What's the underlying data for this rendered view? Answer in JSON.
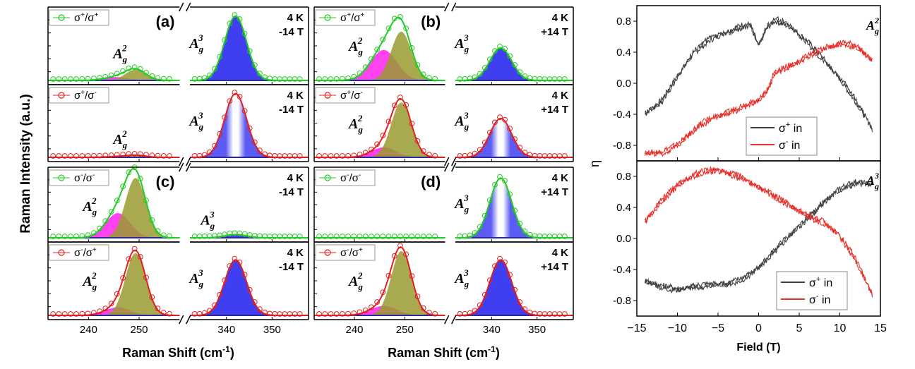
{
  "raman_panel": {
    "ylabel": "Raman Intensity (a.u.)",
    "xlabel": "Raman Shift (cm⁻¹)",
    "xlabel_html": "Raman Shift (cm",
    "xlabel_sup": "-1",
    "xlabel_close": ")",
    "ticks_low": [
      "240",
      "250"
    ],
    "ticks_high": [
      "340",
      "350"
    ]
  },
  "eta_panel": {
    "ylabel": "η",
    "xlabel": "Field (T)",
    "xticks": [
      "−15",
      "−10",
      "−5",
      "0",
      "5",
      "10",
      "15"
    ],
    "yticks": [
      "0.8",
      "0.4",
      "0.0",
      "-0.4",
      "-0.8"
    ]
  },
  "colors": {
    "green": "#22cc22",
    "red": "#e02020",
    "blue": "#2a2af0",
    "olive": "#9a9a30",
    "magenta": "#ff22ee",
    "dark": "#404040",
    "eta_red": "#e8302a"
  },
  "chart_data": [
    {
      "type": "line",
      "id": "a_top",
      "panel": "(a)",
      "label_lines": [
        "4 K",
        "-14 T"
      ],
      "legend": "σ⁺/σ⁺",
      "legend_base": "σ",
      "legend_sup1": "+",
      "legend_mid": "/σ",
      "legend_sup2": "+",
      "line_color": "green",
      "peaks": [
        {
          "name": "A_g^2",
          "center": 249.3,
          "width": 2.0,
          "amp": 0.16
        },
        {
          "name": "A_g^3",
          "center": 342.0,
          "width": 2.4,
          "amp": 0.95
        }
      ],
      "shoulder": {
        "center": 245.5,
        "width": 2.4,
        "amp": 0.05
      },
      "xlim_low": [
        232,
        258
      ],
      "xlim_high": [
        332,
        358
      ]
    },
    {
      "type": "line",
      "id": "a_bot",
      "panel": "",
      "label_lines": [
        "4 K",
        "-14 T"
      ],
      "legend": "σ⁺/σ⁻",
      "legend_base": "σ",
      "legend_sup1": "+",
      "legend_mid": "/σ",
      "legend_sup2": "-",
      "line_color": "red",
      "peaks": [
        {
          "name": "A_g^2",
          "center": 249.3,
          "width": 2.0,
          "amp": 0.03
        },
        {
          "name": "A_g^3",
          "center": 342.0,
          "width": 2.4,
          "amp": 0.95
        }
      ],
      "shoulder": {
        "center": 245.5,
        "width": 2.4,
        "amp": 0.01
      },
      "xlim_low": [
        232,
        258
      ],
      "xlim_high": [
        332,
        358
      ]
    },
    {
      "type": "line",
      "id": "b_top",
      "panel": "(b)",
      "label_lines": [
        "4 K",
        "+14 T"
      ],
      "legend": "σ⁺/σ⁺",
      "legend_base": "σ",
      "legend_sup1": "+",
      "legend_mid": "/σ",
      "legend_sup2": "+",
      "line_color": "green",
      "peaks": [
        {
          "name": "A_g^2",
          "center": 249.3,
          "width": 2.0,
          "amp": 0.72
        },
        {
          "name": "A_g^3",
          "center": 342.0,
          "width": 2.4,
          "amp": 0.48
        }
      ],
      "shoulder": {
        "center": 245.8,
        "width": 2.6,
        "amp": 0.45
      },
      "xlim_low": [
        232,
        258
      ],
      "xlim_high": [
        332,
        358
      ]
    },
    {
      "type": "line",
      "id": "b_bot",
      "panel": "",
      "label_lines": [
        "4 K",
        "+14 T"
      ],
      "legend": "σ⁺/σ⁻",
      "legend_base": "σ",
      "legend_sup1": "+",
      "legend_mid": "/σ",
      "legend_sup2": "-",
      "line_color": "red",
      "peaks": [
        {
          "name": "A_g^2",
          "center": 249.3,
          "width": 2.0,
          "amp": 0.82
        },
        {
          "name": "A_g^3",
          "center": 342.0,
          "width": 2.4,
          "amp": 0.58
        }
      ],
      "shoulder": {
        "center": 245.8,
        "width": 2.4,
        "amp": 0.15
      },
      "xlim_low": [
        232,
        258
      ],
      "xlim_high": [
        332,
        358
      ]
    },
    {
      "type": "line",
      "id": "c_top",
      "panel": "(c)",
      "label_lines": [
        "4 K",
        "-14 T"
      ],
      "legend": "σ⁻/σ⁻",
      "legend_base": "σ",
      "legend_sup1": "-",
      "legend_mid": "/σ",
      "legend_sup2": "-",
      "line_color": "green",
      "peaks": [
        {
          "name": "A_g^2",
          "center": 249.3,
          "width": 2.0,
          "amp": 0.92
        },
        {
          "name": "A_g^3",
          "center": 342.0,
          "width": 2.4,
          "amp": 0.05
        }
      ],
      "shoulder": {
        "center": 245.8,
        "width": 2.4,
        "amp": 0.38
      },
      "xlim_low": [
        232,
        258
      ],
      "xlim_high": [
        332,
        358
      ]
    },
    {
      "type": "line",
      "id": "c_bot",
      "panel": "",
      "label_lines": [
        "4 K",
        "-14 T"
      ],
      "legend": "σ⁻/σ⁺",
      "legend_base": "σ",
      "legend_sup1": "-",
      "legend_mid": "/σ",
      "legend_sup2": "+",
      "line_color": "red",
      "peaks": [
        {
          "name": "A_g^2",
          "center": 249.3,
          "width": 2.0,
          "amp": 0.92
        },
        {
          "name": "A_g^3",
          "center": 342.0,
          "width": 2.4,
          "amp": 0.82
        }
      ],
      "shoulder": {
        "center": 245.8,
        "width": 2.4,
        "amp": 0.12
      },
      "xlim_low": [
        232,
        258
      ],
      "xlim_high": [
        332,
        358
      ]
    },
    {
      "type": "line",
      "id": "d_top",
      "panel": "(d)",
      "label_lines": [
        "4 K",
        "+14 T"
      ],
      "legend": "σ⁻/σ⁻",
      "legend_base": "σ",
      "legend_sup1": "-",
      "legend_mid": "/σ",
      "legend_sup2": "-",
      "line_color": "green",
      "peaks": [
        {
          "name": "A_g^2",
          "center": 249.3,
          "width": 2.0,
          "amp": 0.0
        },
        {
          "name": "A_g^3",
          "center": 342.0,
          "width": 2.4,
          "amp": 0.92
        }
      ],
      "shoulder": {
        "center": 245.8,
        "width": 2.4,
        "amp": 0.0
      },
      "xlim_low": [
        232,
        258
      ],
      "xlim_high": [
        332,
        358
      ]
    },
    {
      "type": "line",
      "id": "d_bot",
      "panel": "",
      "label_lines": [
        "4 K",
        "+14 T"
      ],
      "legend": "σ⁻/σ⁺",
      "legend_base": "σ",
      "legend_sup1": "-",
      "legend_mid": "/σ",
      "legend_sup2": "+",
      "line_color": "red",
      "peaks": [
        {
          "name": "A_g^2",
          "center": 249.3,
          "width": 2.0,
          "amp": 0.95
        },
        {
          "name": "A_g^3",
          "center": 342.0,
          "width": 2.4,
          "amp": 0.82
        }
      ],
      "shoulder": {
        "center": 245.8,
        "width": 2.6,
        "amp": 0.14
      },
      "xlim_low": [
        232,
        258
      ],
      "xlim_high": [
        332,
        358
      ]
    },
    {
      "type": "line",
      "id": "eta_top",
      "mode": "A_g^2",
      "xlim": [
        -15,
        15
      ],
      "ylim": [
        -1.0,
        1.0
      ],
      "series": [
        {
          "name": "σ⁺ in",
          "name_base": "σ",
          "name_sup": "+",
          "name_rest": " in",
          "color": "dark",
          "points": [
            [
              -14,
              -0.4
            ],
            [
              -12,
              -0.22
            ],
            [
              -10,
              0.1
            ],
            [
              -8,
              0.38
            ],
            [
              -6,
              0.55
            ],
            [
              -4,
              0.66
            ],
            [
              -2,
              0.76
            ],
            [
              -1,
              0.76
            ],
            [
              0,
              0.48
            ],
            [
              1,
              0.7
            ],
            [
              2,
              0.8
            ],
            [
              4,
              0.72
            ],
            [
              6,
              0.55
            ],
            [
              8,
              0.32
            ],
            [
              10,
              0.05
            ],
            [
              12,
              -0.25
            ],
            [
              14,
              -0.58
            ]
          ]
        },
        {
          "name": "σ⁻ in",
          "name_base": "σ",
          "name_sup": "-",
          "name_rest": " in",
          "color": "eta_red",
          "points": [
            [
              -14,
              -0.9
            ],
            [
              -12,
              -0.88
            ],
            [
              -10,
              -0.78
            ],
            [
              -8,
              -0.62
            ],
            [
              -6,
              -0.48
            ],
            [
              -4,
              -0.38
            ],
            [
              -2,
              -0.28
            ],
            [
              0,
              -0.22
            ],
            [
              1,
              -0.12
            ],
            [
              2,
              0.12
            ],
            [
              4,
              0.22
            ],
            [
              6,
              0.36
            ],
            [
              8,
              0.46
            ],
            [
              10,
              0.5
            ],
            [
              12,
              0.46
            ],
            [
              14,
              0.3
            ]
          ]
        }
      ]
    },
    {
      "type": "line",
      "id": "eta_bot",
      "mode": "A_g^3",
      "xlim": [
        -15,
        15
      ],
      "ylim": [
        -1.0,
        1.0
      ],
      "series": [
        {
          "name": "σ⁺ in",
          "name_base": "σ",
          "name_sup": "+",
          "name_rest": " in",
          "color": "dark",
          "points": [
            [
              -14,
              -0.55
            ],
            [
              -12,
              -0.6
            ],
            [
              -10,
              -0.64
            ],
            [
              -8,
              -0.64
            ],
            [
              -6,
              -0.62
            ],
            [
              -4,
              -0.58
            ],
            [
              -2,
              -0.5
            ],
            [
              0,
              -0.38
            ],
            [
              2,
              -0.18
            ],
            [
              4,
              0.05
            ],
            [
              6,
              0.28
            ],
            [
              8,
              0.48
            ],
            [
              10,
              0.62
            ],
            [
              12,
              0.7
            ],
            [
              14,
              0.7
            ]
          ]
        },
        {
          "name": "σ⁻ in",
          "name_base": "σ",
          "name_sup": "-",
          "name_rest": " in",
          "color": "eta_red",
          "points": [
            [
              -14,
              0.2
            ],
            [
              -12,
              0.5
            ],
            [
              -10,
              0.7
            ],
            [
              -8,
              0.8
            ],
            [
              -6,
              0.86
            ],
            [
              -4,
              0.86
            ],
            [
              -2,
              0.8
            ],
            [
              0,
              0.66
            ],
            [
              2,
              0.52
            ],
            [
              4,
              0.4
            ],
            [
              6,
              0.32
            ],
            [
              8,
              0.22
            ],
            [
              10,
              0.02
            ],
            [
              12,
              -0.3
            ],
            [
              14,
              -0.72
            ]
          ]
        }
      ]
    }
  ]
}
